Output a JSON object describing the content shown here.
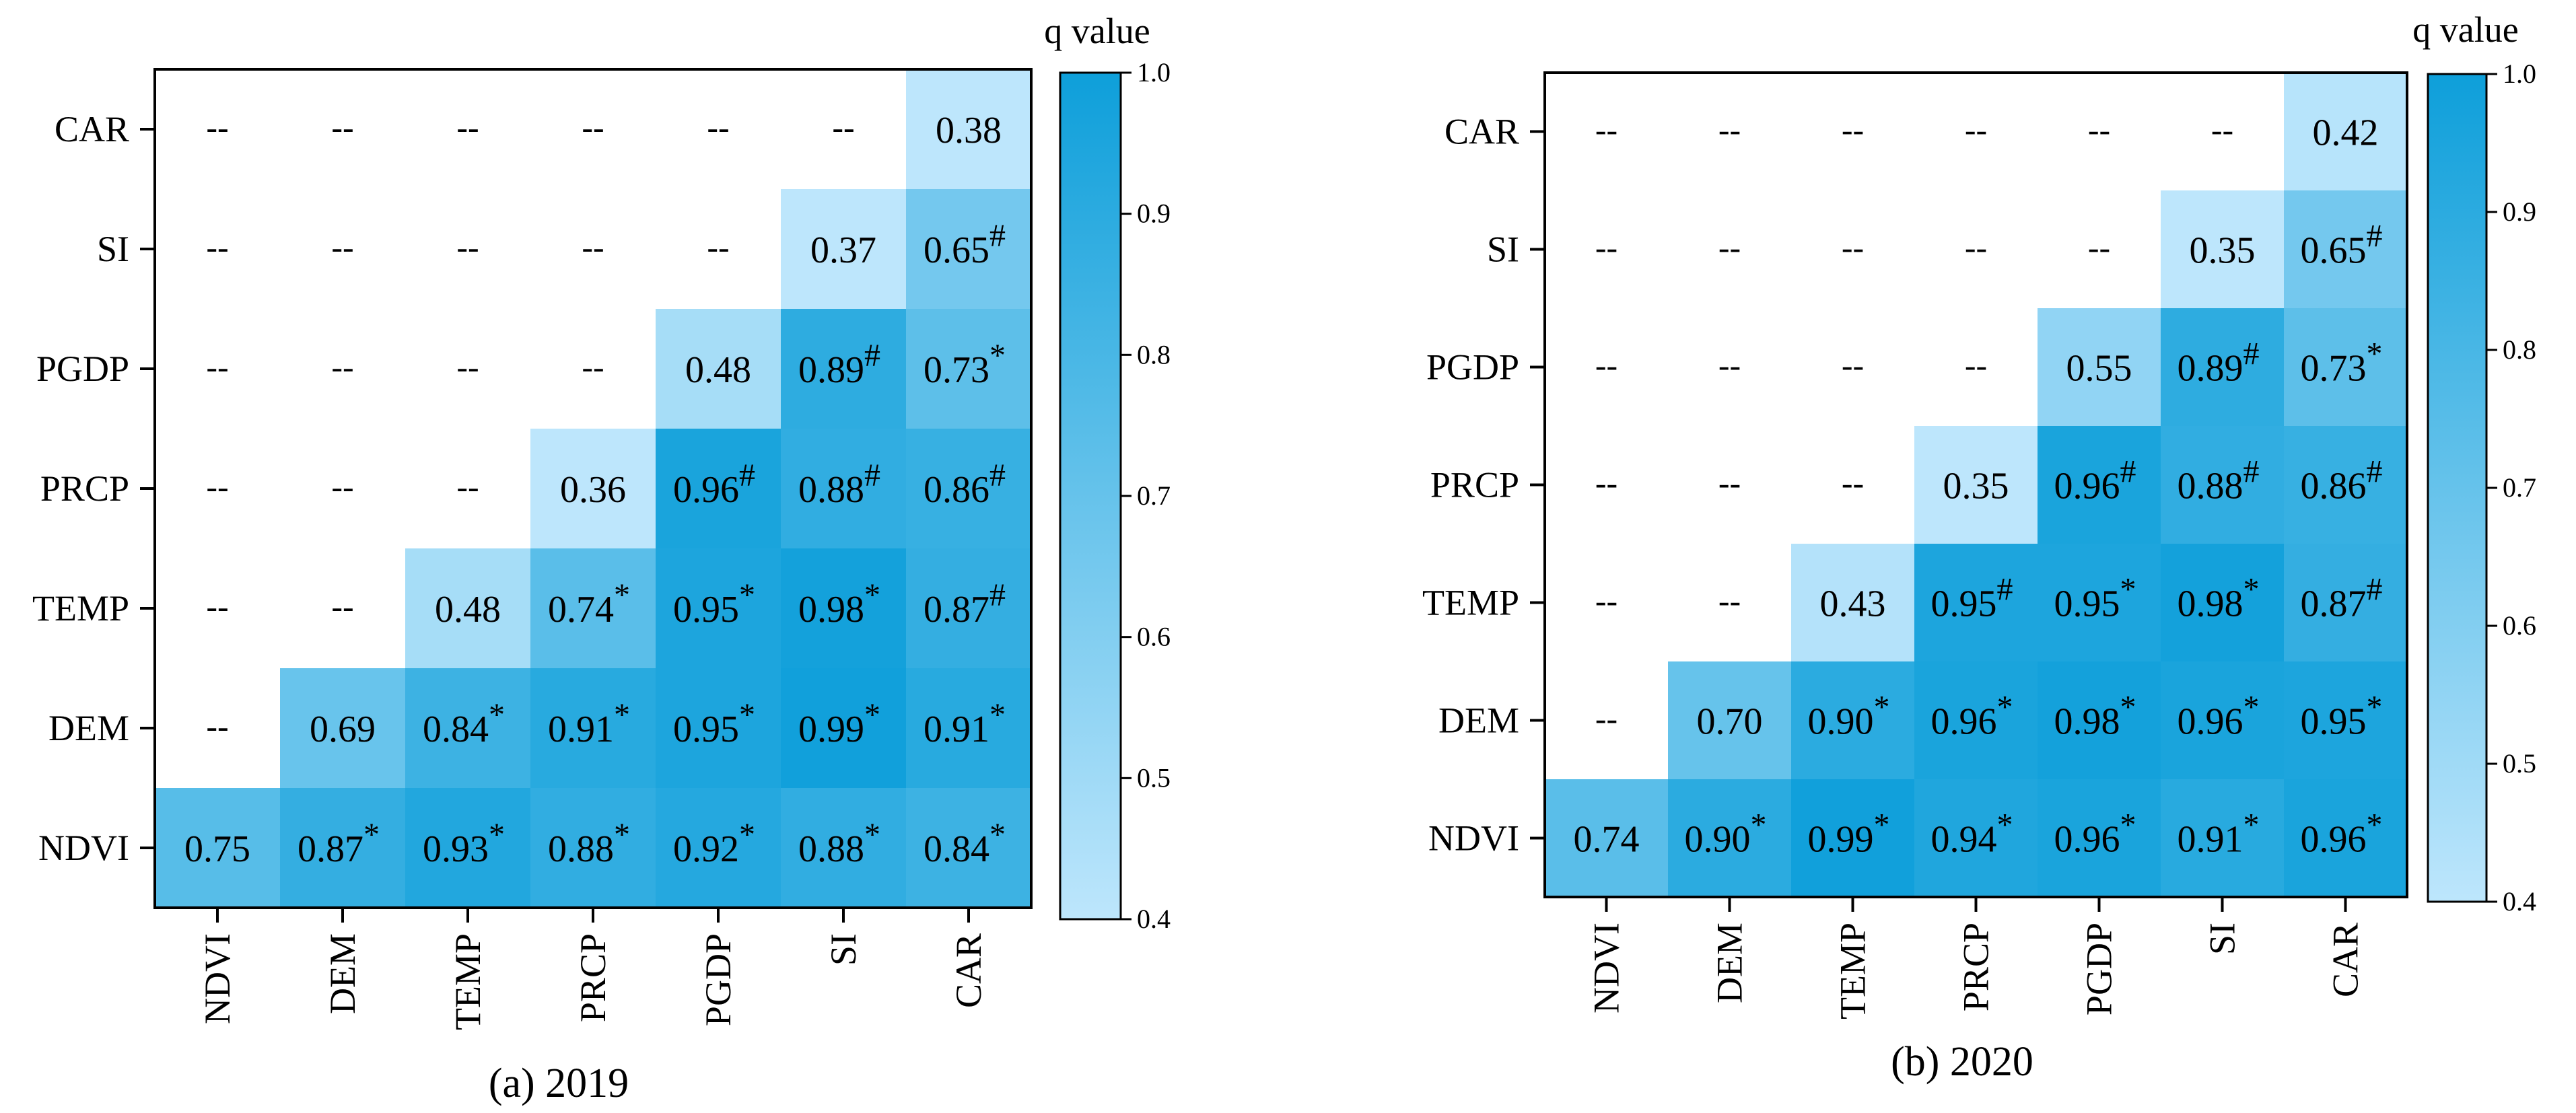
{
  "chart_data": [
    {
      "type": "heatmap",
      "caption": "(a) 2019",
      "x_categories": [
        "NDVI",
        "DEM",
        "TEMP",
        "PRCP",
        "PGDP",
        "SI",
        "CAR"
      ],
      "y_categories": [
        "CAR",
        "SI",
        "PGDP",
        "PRCP",
        "TEMP",
        "DEM",
        "NDVI"
      ],
      "placeholder": "--",
      "cells": [
        [
          null,
          null,
          null,
          null,
          null,
          null,
          {
            "v": 0.38,
            "m": ""
          }
        ],
        [
          null,
          null,
          null,
          null,
          null,
          {
            "v": 0.37,
            "m": ""
          },
          {
            "v": 0.65,
            "m": "#"
          }
        ],
        [
          null,
          null,
          null,
          null,
          {
            "v": 0.48,
            "m": ""
          },
          {
            "v": 0.89,
            "m": "#"
          },
          {
            "v": 0.73,
            "m": "*"
          }
        ],
        [
          null,
          null,
          null,
          {
            "v": 0.36,
            "m": ""
          },
          {
            "v": 0.96,
            "m": "#"
          },
          {
            "v": 0.88,
            "m": "#"
          },
          {
            "v": 0.86,
            "m": "#"
          }
        ],
        [
          null,
          null,
          {
            "v": 0.48,
            "m": ""
          },
          {
            "v": 0.74,
            "m": "*"
          },
          {
            "v": 0.95,
            "m": "*"
          },
          {
            "v": 0.98,
            "m": "*"
          },
          {
            "v": 0.87,
            "m": "#"
          }
        ],
        [
          null,
          {
            "v": 0.69,
            "m": ""
          },
          {
            "v": 0.84,
            "m": "*"
          },
          {
            "v": 0.91,
            "m": "*"
          },
          {
            "v": 0.95,
            "m": "*"
          },
          {
            "v": 0.99,
            "m": "*"
          },
          {
            "v": 0.91,
            "m": "*"
          }
        ],
        [
          {
            "v": 0.75,
            "m": ""
          },
          {
            "v": 0.87,
            "m": "*"
          },
          {
            "v": 0.93,
            "m": "*"
          },
          {
            "v": 0.88,
            "m": "*"
          },
          {
            "v": 0.92,
            "m": "*"
          },
          {
            "v": 0.88,
            "m": "*"
          },
          {
            "v": 0.84,
            "m": "*"
          }
        ]
      ],
      "colorbar": {
        "title": "q value",
        "min": 0.4,
        "max": 1.0,
        "ticks": [
          "1.0",
          "0.9",
          "0.8",
          "0.7",
          "0.6",
          "0.5",
          "0.4"
        ]
      }
    },
    {
      "type": "heatmap",
      "caption": "(b) 2020",
      "x_categories": [
        "NDVI",
        "DEM",
        "TEMP",
        "PRCP",
        "PGDP",
        "SI",
        "CAR"
      ],
      "y_categories": [
        "CAR",
        "SI",
        "PGDP",
        "PRCP",
        "TEMP",
        "DEM",
        "NDVI"
      ],
      "placeholder": "--",
      "cells": [
        [
          null,
          null,
          null,
          null,
          null,
          null,
          {
            "v": 0.42,
            "m": ""
          }
        ],
        [
          null,
          null,
          null,
          null,
          null,
          {
            "v": 0.35,
            "m": ""
          },
          {
            "v": 0.65,
            "m": "#"
          }
        ],
        [
          null,
          null,
          null,
          null,
          {
            "v": 0.55,
            "m": ""
          },
          {
            "v": 0.89,
            "m": "#"
          },
          {
            "v": 0.73,
            "m": "*"
          }
        ],
        [
          null,
          null,
          null,
          {
            "v": 0.35,
            "m": ""
          },
          {
            "v": 0.96,
            "m": "#"
          },
          {
            "v": 0.88,
            "m": "#"
          },
          {
            "v": 0.86,
            "m": "#"
          }
        ],
        [
          null,
          null,
          {
            "v": 0.43,
            "m": ""
          },
          {
            "v": 0.95,
            "m": "#"
          },
          {
            "v": 0.95,
            "m": "*"
          },
          {
            "v": 0.98,
            "m": "*"
          },
          {
            "v": 0.87,
            "m": "#"
          }
        ],
        [
          null,
          {
            "v": 0.7,
            "m": ""
          },
          {
            "v": 0.9,
            "m": "*"
          },
          {
            "v": 0.96,
            "m": "*"
          },
          {
            "v": 0.98,
            "m": "*"
          },
          {
            "v": 0.96,
            "m": "*"
          },
          {
            "v": 0.95,
            "m": "*"
          }
        ],
        [
          {
            "v": 0.74,
            "m": ""
          },
          {
            "v": 0.9,
            "m": "*"
          },
          {
            "v": 0.99,
            "m": "*"
          },
          {
            "v": 0.94,
            "m": "*"
          },
          {
            "v": 0.96,
            "m": "*"
          },
          {
            "v": 0.91,
            "m": "*"
          },
          {
            "v": 0.96,
            "m": "*"
          }
        ]
      ],
      "colorbar": {
        "title": "q value",
        "min": 0.4,
        "max": 1.0,
        "ticks": [
          "1.0",
          "0.9",
          "0.8",
          "0.7",
          "0.6",
          "0.5",
          "0.4"
        ]
      }
    }
  ],
  "colors": {
    "low": "#bde6fc",
    "high": "#0e9fda",
    "frame": "#000000",
    "text": "#000000"
  }
}
